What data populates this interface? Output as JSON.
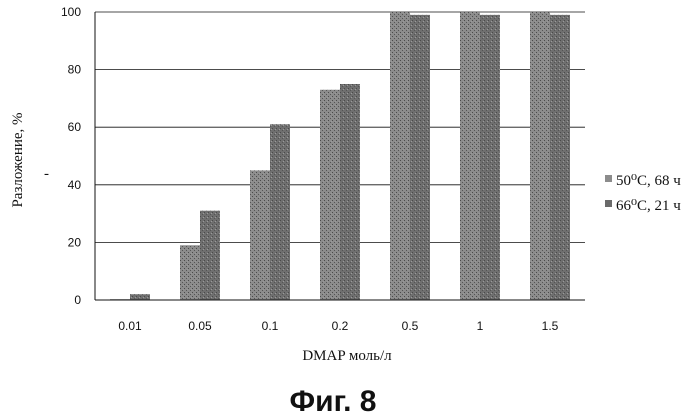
{
  "chart_data": {
    "type": "bar",
    "categories": [
      "0.01",
      "0.05",
      "0.1",
      "0.2",
      "0.5",
      "1",
      "1.5"
    ],
    "series": [
      {
        "name": "50⁰C, 68 ч",
        "values": [
          0.3,
          19,
          45,
          73,
          100,
          100,
          100
        ],
        "color": "#8c8c8c"
      },
      {
        "name": "66⁰C, 21 ч",
        "values": [
          2,
          31,
          61,
          75,
          99,
          99,
          99
        ],
        "color": "#6f6f6f"
      }
    ],
    "xlabel": "DMAP моль/л",
    "ylabel": "Разложение, %",
    "ylabel_dash": "-",
    "ylim": [
      0,
      100
    ],
    "yticks": [
      "0",
      "20",
      "40",
      "60",
      "80",
      "100"
    ],
    "grid": true,
    "legend_position": "right"
  },
  "figure_caption": "Фиг. 8"
}
